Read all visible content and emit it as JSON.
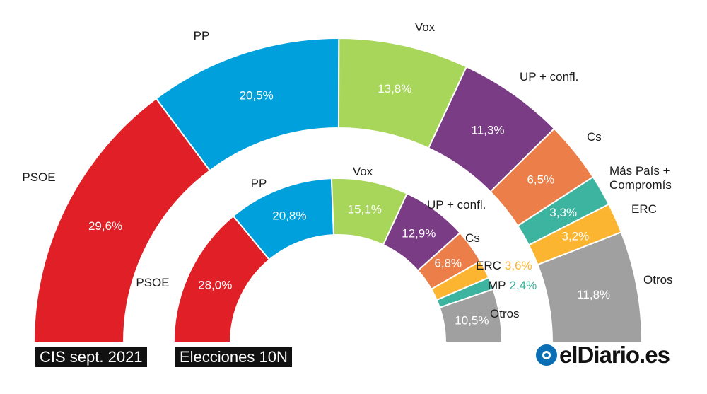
{
  "chart_data": [
    {
      "type": "pie",
      "subtype": "semicircle-donut",
      "title": "CIS sept. 2021",
      "series": [
        {
          "name": "PSOE",
          "value": 29.6,
          "value_label": "29,6%",
          "color": "#e11f26"
        },
        {
          "name": "PP",
          "value": 20.5,
          "value_label": "20,5%",
          "color": "#00a0dc"
        },
        {
          "name": "Vox",
          "value": 13.8,
          "value_label": "13,8%",
          "color": "#a8d65a"
        },
        {
          "name": "UP + confl.",
          "value": 11.3,
          "value_label": "11,3%",
          "color": "#7b3c86"
        },
        {
          "name": "Cs",
          "value": 6.5,
          "value_label": "6,5%",
          "color": "#ec7f49"
        },
        {
          "name": "Más País + Compromís",
          "value": 3.3,
          "value_label": "3,3%",
          "color": "#3db49f"
        },
        {
          "name": "ERC",
          "value": 3.2,
          "value_label": "3,2%",
          "color": "#fbb531"
        },
        {
          "name": "Otros",
          "value": 11.8,
          "value_label": "11,8%",
          "color": "#a0a0a0"
        }
      ]
    },
    {
      "type": "pie",
      "subtype": "semicircle-donut",
      "title": "Elecciones 10N",
      "series": [
        {
          "name": "PSOE",
          "value": 28.0,
          "value_label": "28,0%",
          "color": "#e11f26"
        },
        {
          "name": "PP",
          "value": 20.8,
          "value_label": "20,8%",
          "color": "#00a0dc"
        },
        {
          "name": "Vox",
          "value": 15.1,
          "value_label": "15,1%",
          "color": "#a8d65a"
        },
        {
          "name": "UP + confl.",
          "value": 12.9,
          "value_label": "12,9%",
          "color": "#7b3c86"
        },
        {
          "name": "Cs",
          "value": 6.8,
          "value_label": "6,8%",
          "color": "#ec7f49"
        },
        {
          "name": "ERC",
          "value": 3.6,
          "value_label": "3,6%",
          "color": "#fbb531"
        },
        {
          "name": "MP",
          "value": 2.4,
          "value_label": "2,4%",
          "color": "#3db49f"
        },
        {
          "name": "Otros",
          "value": 10.5,
          "value_label": "10,5%",
          "color": "#a0a0a0"
        }
      ]
    }
  ],
  "logo": {
    "text": "elDiario.es"
  }
}
